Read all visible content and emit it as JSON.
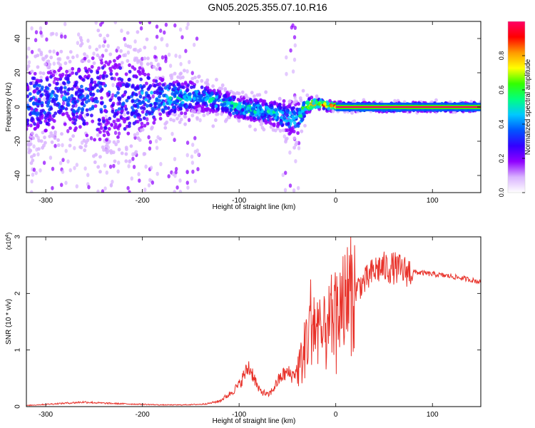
{
  "title": "GN05.2025.355.07.10.R16",
  "colors": {
    "snr_line": "#e8322a",
    "axis": "#000000",
    "colorbar": [
      "#ffffff",
      "#d9b3ff",
      "#8f00ff",
      "#3300ff",
      "#0055ff",
      "#00c8ff",
      "#00ff80",
      "#33ff00",
      "#ffff00",
      "#ff9900",
      "#ff0000",
      "#ff0066"
    ]
  },
  "chart_data": [
    {
      "type": "heatmap",
      "title": "GN05.2025.355.07.10.R16",
      "xlabel": "Height of straight line (km)",
      "ylabel": "Frequency (Hz)",
      "xlim": [
        -320,
        150
      ],
      "ylim": [
        -50,
        50
      ],
      "xticks": [
        -300,
        -200,
        -100,
        0,
        100
      ],
      "yticks": [
        -40,
        -20,
        0,
        20,
        40
      ],
      "colorbar": {
        "label": "Normalized spectral amplitude",
        "range": [
          0,
          1
        ],
        "ticks": [
          "0.0",
          "0.2",
          "0.4",
          "0.6",
          "0.8"
        ]
      },
      "ridge": {
        "x": [
          -320,
          -300,
          -280,
          -250,
          -220,
          -200,
          -180,
          -160,
          -140,
          -120,
          -100,
          -80,
          -60,
          -50,
          -40,
          -30,
          -20,
          -10,
          0,
          20,
          50,
          100,
          150
        ],
        "freq": [
          3,
          4,
          5,
          5,
          5,
          4,
          5,
          6,
          6,
          3,
          0,
          -2,
          -4,
          -6,
          -8,
          1,
          2,
          1,
          0.5,
          0,
          0,
          0,
          0
        ],
        "amplitude": [
          0.35,
          0.4,
          0.4,
          0.35,
          0.35,
          0.4,
          0.45,
          0.5,
          0.45,
          0.5,
          0.55,
          0.5,
          0.5,
          0.45,
          0.5,
          0.7,
          0.85,
          0.9,
          0.95,
          1,
          1,
          1,
          1
        ],
        "spread": [
          35,
          30,
          28,
          42,
          42,
          30,
          20,
          14,
          12,
          10,
          9,
          10,
          11,
          14,
          14,
          6,
          4,
          4,
          3,
          3,
          3,
          3,
          3
        ]
      }
    },
    {
      "type": "line",
      "title": "",
      "xlabel": "Height of straight line (km)",
      "ylabel": "SNR (10 * v/v)",
      "multiplier_label": "(x10",
      "multiplier_exp": "4",
      "xlim": [
        -320,
        150
      ],
      "ylim": [
        0,
        3
      ],
      "xticks": [
        -300,
        -200,
        -100,
        0,
        100
      ],
      "yticks": [
        0,
        1,
        2,
        3
      ],
      "series": [
        {
          "name": "SNR",
          "x": [
            -320,
            -300,
            -280,
            -260,
            -240,
            -220,
            -200,
            -180,
            -160,
            -140,
            -130,
            -120,
            -110,
            -100,
            -95,
            -90,
            -85,
            -80,
            -75,
            -70,
            -65,
            -60,
            -55,
            -50,
            -45,
            -40,
            -35,
            -30,
            -25,
            -20,
            -15,
            -10,
            -5,
            0,
            5,
            10,
            15,
            20,
            25,
            30,
            35,
            40,
            45,
            50,
            60,
            70,
            80,
            90,
            100,
            110,
            120,
            130,
            140,
            150
          ],
          "values": [
            0.02,
            0.04,
            0.06,
            0.08,
            0.06,
            0.05,
            0.04,
            0.03,
            0.03,
            0.04,
            0.06,
            0.1,
            0.22,
            0.38,
            0.55,
            0.7,
            0.55,
            0.3,
            0.25,
            0.2,
            0.3,
            0.45,
            0.55,
            0.6,
            0.55,
            0.65,
            0.8,
            1.2,
            1.6,
            1.4,
            1.2,
            1.3,
            1.5,
            1.6,
            1.75,
            1.85,
            1.95,
            2.05,
            2.15,
            2.2,
            2.3,
            2.4,
            2.45,
            2.45,
            2.45,
            2.4,
            2.38,
            2.36,
            2.34,
            2.32,
            2.3,
            2.27,
            2.24,
            2.2
          ]
        }
      ]
    }
  ]
}
